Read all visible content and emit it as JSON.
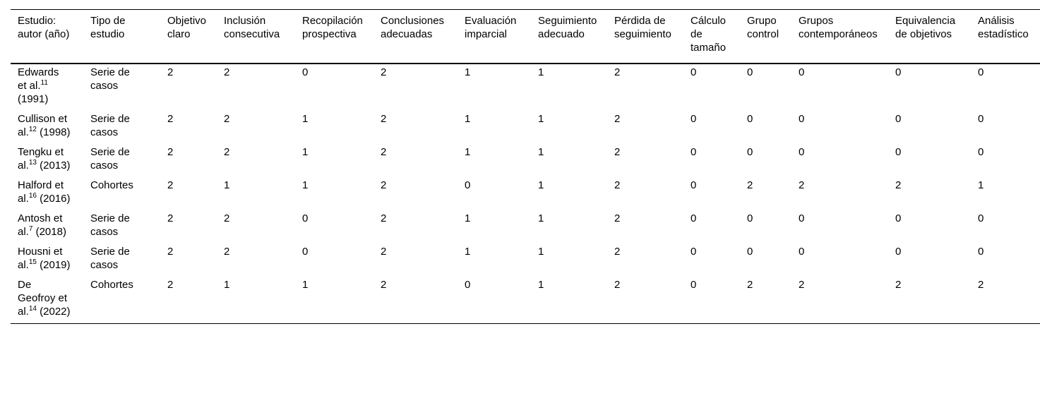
{
  "page": {
    "background_color": "#ffffff",
    "text_color": "#000000",
    "rule_color": "#000000"
  },
  "table": {
    "columns": [
      "Estudio: autor (año)",
      "Tipo de estudio",
      "Objetivo claro",
      "Inclusión consecutiva",
      "Recopilación prospectiva",
      "Conclusiones adecuadas",
      "Evaluación imparcial",
      "Seguimiento adecuado",
      "Pérdida de seguimiento",
      "Cálculo de tamaño",
      "Grupo control",
      "Grupos contemporáneos",
      "Equivalencia de objetivos",
      "Análisis estadístico"
    ],
    "rows": [
      {
        "author": "Edwards et al.",
        "ref": "11",
        "year": "(1991)",
        "study_type": "Serie de casos",
        "scores": [
          "2",
          "2",
          "0",
          "2",
          "1",
          "1",
          "2",
          "0",
          "0",
          "0",
          "0",
          "0"
        ]
      },
      {
        "author": "Cullison et al.",
        "ref": "12",
        "year": "(1998)",
        "study_type": "Serie de casos",
        "scores": [
          "2",
          "2",
          "1",
          "2",
          "1",
          "1",
          "2",
          "0",
          "0",
          "0",
          "0",
          "0"
        ]
      },
      {
        "author": "Tengku et al.",
        "ref": "13",
        "year": "(2013)",
        "study_type": "Serie de casos",
        "scores": [
          "2",
          "2",
          "1",
          "2",
          "1",
          "1",
          "2",
          "0",
          "0",
          "0",
          "0",
          "0"
        ]
      },
      {
        "author": "Halford et al.",
        "ref": "16",
        "year": "(2016)",
        "study_type": "Cohortes",
        "scores": [
          "2",
          "1",
          "1",
          "2",
          "0",
          "1",
          "2",
          "0",
          "2",
          "2",
          "2",
          "1"
        ]
      },
      {
        "author": "Antosh et al.",
        "ref": "7",
        "year": "(2018)",
        "study_type": "Serie de casos",
        "scores": [
          "2",
          "2",
          "0",
          "2",
          "1",
          "1",
          "2",
          "0",
          "0",
          "0",
          "0",
          "0"
        ]
      },
      {
        "author": "Housni et al.",
        "ref": "15",
        "year": "(2019)",
        "study_type": "Serie de casos",
        "scores": [
          "2",
          "2",
          "0",
          "2",
          "1",
          "1",
          "2",
          "0",
          "0",
          "0",
          "0",
          "0"
        ]
      },
      {
        "author": "De Geofroy et al.",
        "ref": "14",
        "year": "(2022)",
        "study_type": "Cohortes",
        "scores": [
          "2",
          "1",
          "1",
          "2",
          "0",
          "1",
          "2",
          "0",
          "2",
          "2",
          "2",
          "2"
        ]
      }
    ]
  }
}
